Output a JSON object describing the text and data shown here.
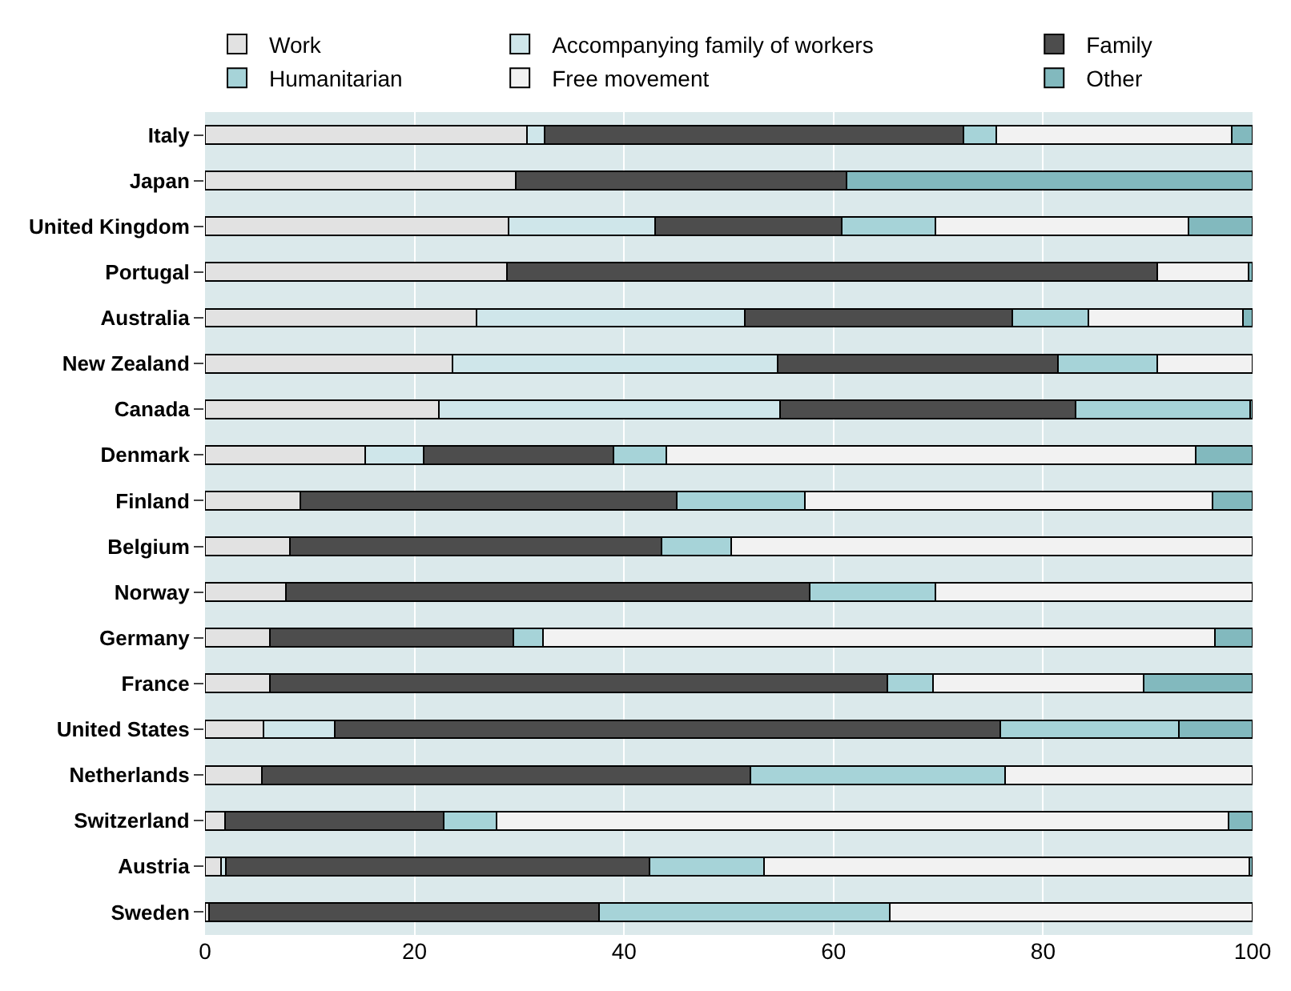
{
  "chart_data": {
    "type": "bar",
    "orientation": "horizontal",
    "stacked": true,
    "categories": [
      "Italy",
      "Japan",
      "United Kingdom",
      "Portugal",
      "Australia",
      "New Zealand",
      "Canada",
      "Denmark",
      "Finland",
      "Belgium",
      "Norway",
      "Germany",
      "France",
      "United States",
      "Netherlands",
      "Switzerland",
      "Austria",
      "Sweden"
    ],
    "series": [
      {
        "name": "Work",
        "color": "#e2e2e2",
        "values": [
          30.7,
          29.7,
          29.0,
          28.8,
          25.9,
          23.6,
          22.3,
          15.3,
          9.1,
          8.1,
          7.7,
          6.2,
          6.2,
          5.6,
          5.4,
          1.9,
          1.5,
          0.4
        ]
      },
      {
        "name": "Accompanying family of workers",
        "color": "#cfe6ea",
        "values": [
          1.7,
          null,
          14.0,
          null,
          25.6,
          31.1,
          32.6,
          5.6,
          null,
          null,
          null,
          null,
          null,
          6.8,
          null,
          null,
          0.5,
          null
        ]
      },
      {
        "name": "Family",
        "color": "#4d4d4d",
        "values": [
          40.0,
          31.5,
          17.8,
          62.1,
          25.6,
          26.7,
          28.2,
          18.1,
          35.9,
          35.5,
          50.0,
          23.2,
          58.9,
          63.5,
          46.7,
          20.9,
          40.4,
          37.2
        ]
      },
      {
        "name": "Humanitarian",
        "color": "#a6d3d8",
        "values": [
          3.1,
          null,
          8.9,
          null,
          7.2,
          9.5,
          16.7,
          5.0,
          12.3,
          6.6,
          12.0,
          2.9,
          4.4,
          17.1,
          24.3,
          5.0,
          11.0,
          27.8
        ]
      },
      {
        "name": "Free movement",
        "color": "#f2f2f2",
        "values": [
          22.5,
          null,
          24.2,
          8.7,
          14.8,
          9.1,
          null,
          50.6,
          38.9,
          49.8,
          30.3,
          64.1,
          20.1,
          null,
          23.6,
          69.9,
          46.3,
          34.6
        ]
      },
      {
        "name": "Other",
        "color": "#82b9be",
        "values": [
          2.0,
          38.8,
          6.1,
          0.4,
          0.9,
          null,
          0.2,
          5.4,
          3.8,
          null,
          null,
          3.6,
          10.4,
          7.0,
          null,
          2.3,
          0.3,
          null
        ]
      }
    ],
    "xlim": [
      0,
      100
    ],
    "xticks": [
      0,
      20,
      40,
      60,
      80,
      100
    ],
    "grid": "x",
    "legend": "top"
  }
}
